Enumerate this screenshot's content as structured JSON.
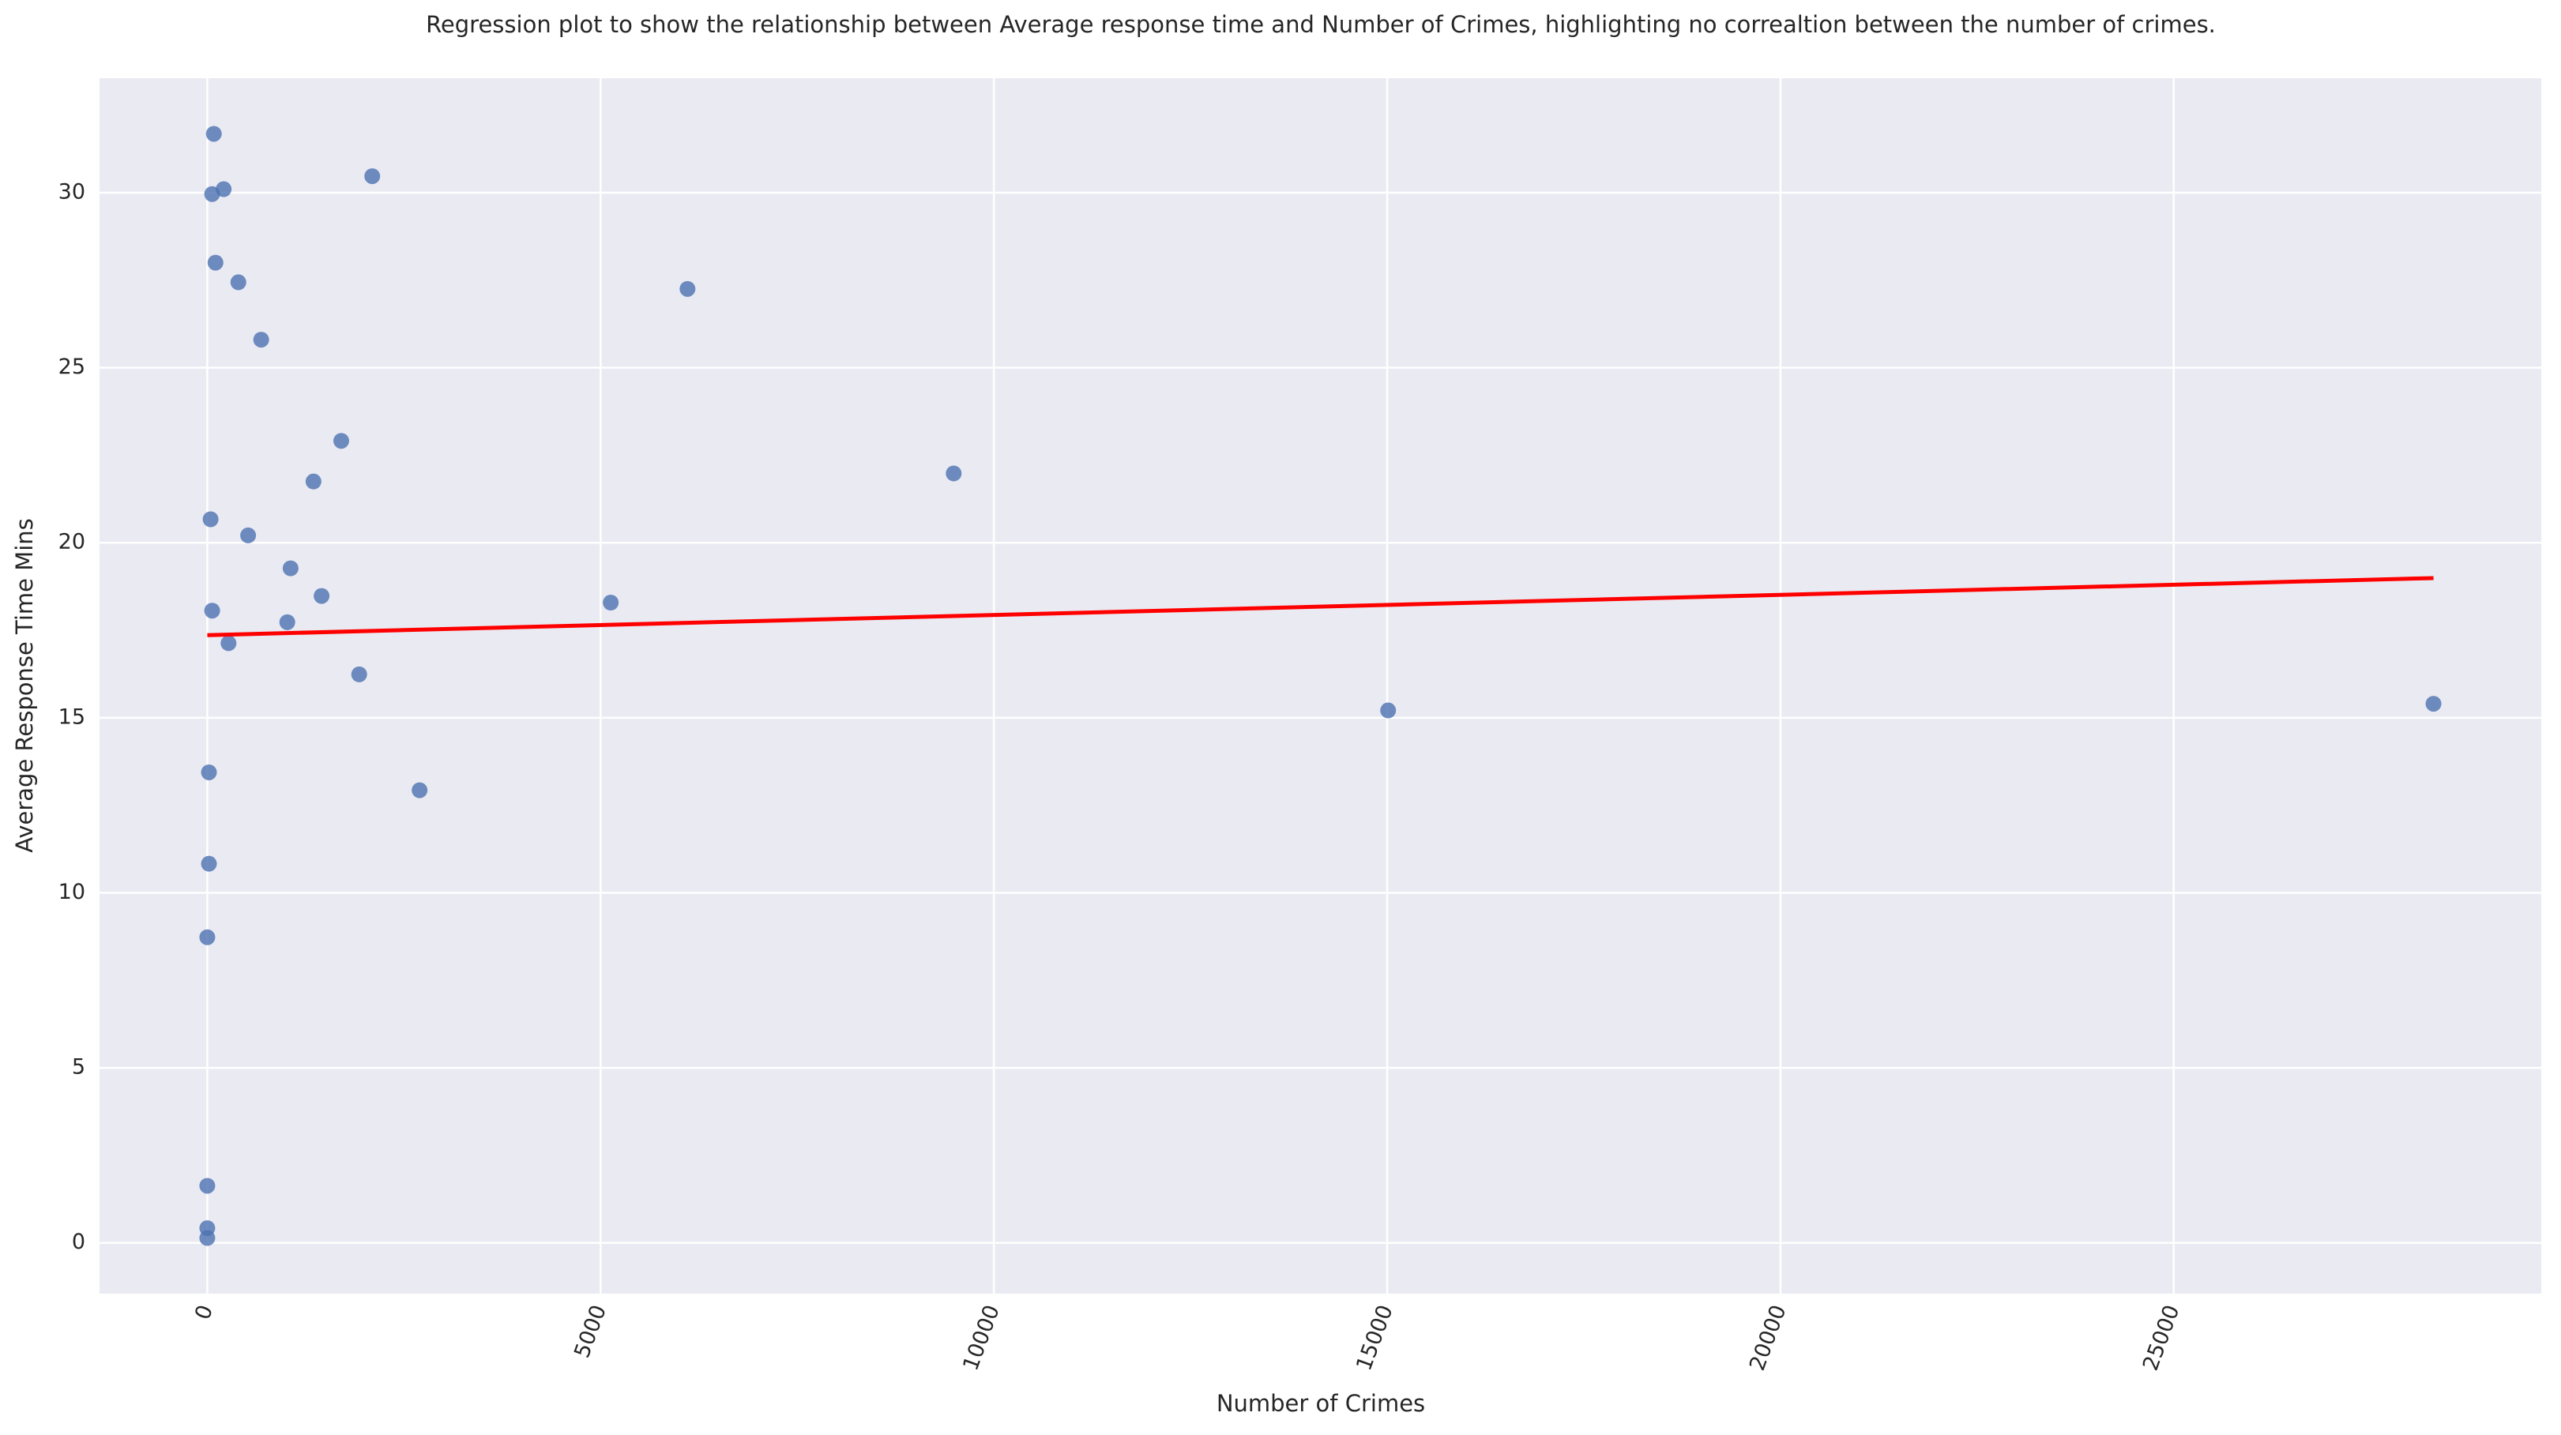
{
  "chart_data": {
    "type": "scatter",
    "title": "Regression plot to show the relationship between Average response time and Number of Crimes, highlighting no correaltion between the number of crimes.",
    "x_label": "Number of Crimes",
    "y_label": "Average Response Time Mins",
    "x": [
      83,
      62,
      208,
      2097,
      104,
      395,
      6105,
      685,
      1703,
      9489,
      1350,
      42,
      519,
      1059,
      1453,
      5129,
      62,
      1017,
      270,
      1931,
      28302,
      15012,
      21,
      2699,
      21,
      0,
      0,
      0,
      0
    ],
    "values": [
      31.68,
      29.96,
      30.1,
      30.47,
      28.0,
      27.44,
      27.25,
      25.8,
      22.91,
      21.98,
      21.75,
      20.67,
      20.21,
      19.27,
      18.48,
      18.29,
      18.06,
      17.73,
      17.13,
      16.24,
      15.4,
      15.21,
      13.44,
      12.93,
      10.83,
      8.73,
      1.63,
      0.42,
      0.14
    ],
    "color": "#4c72b0",
    "fit": {
      "x": [
        0,
        28302
      ],
      "values": [
        17.36,
        18.99
      ],
      "color": "#ff0000"
    },
    "xlim": [
      -1370,
      29672
    ],
    "ylim": [
      -1.45,
      33.27
    ],
    "xticks": [
      0,
      5000,
      10000,
      15000,
      20000,
      25000
    ],
    "yticks": [
      0,
      5,
      10,
      15,
      20,
      25,
      30
    ],
    "grid": true
  }
}
